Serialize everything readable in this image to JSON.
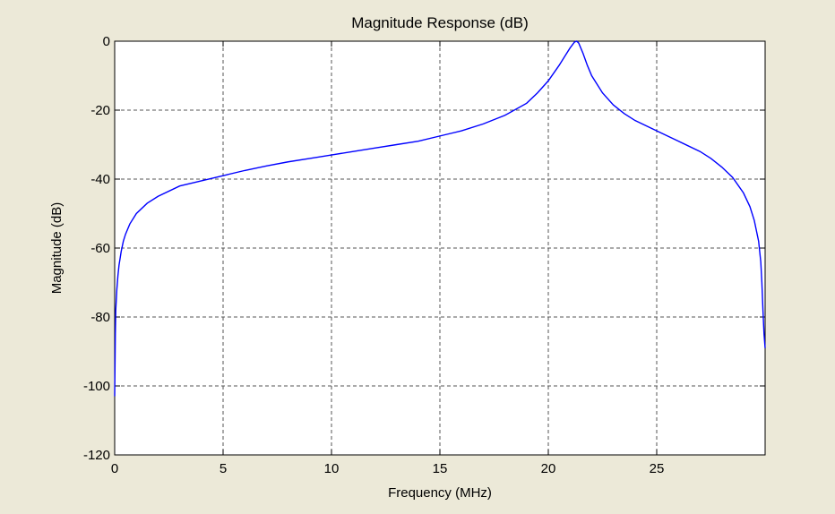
{
  "chart_data": {
    "type": "line",
    "title": "Magnitude Response (dB)",
    "xlabel": "Frequency (MHz)",
    "ylabel": "Magnitude (dB)",
    "xlim": [
      0,
      30
    ],
    "ylim": [
      -120,
      0
    ],
    "x_ticks": [
      0,
      5,
      10,
      15,
      20,
      25
    ],
    "x_tick_labels": [
      "0",
      "5",
      "10",
      "15",
      "20",
      "25"
    ],
    "y_ticks": [
      0,
      -20,
      -40,
      -60,
      -80,
      -100,
      -120
    ],
    "y_tick_labels": [
      "0",
      "-20",
      "-40",
      "-60",
      "-80",
      "-100",
      "-120"
    ],
    "grid": true,
    "colors": {
      "background": "#ece9d8",
      "plot_background": "#ffffff",
      "line": "#0000ff",
      "grid": "#555555"
    },
    "series": [
      {
        "x": [
          0.0,
          0.03,
          0.05,
          0.1,
          0.15,
          0.2,
          0.3,
          0.4,
          0.5,
          0.7,
          1.0,
          1.5,
          2.0,
          3.0,
          4.0,
          5.0,
          6.0,
          7.0,
          8.0,
          9.0,
          10.0,
          11.0,
          12.0,
          13.0,
          14.0,
          15.0,
          16.0,
          17.0,
          18.0,
          19.0,
          19.5,
          20.0,
          20.5,
          20.8,
          21.0,
          21.2,
          21.3,
          21.4,
          21.6,
          21.8,
          22.0,
          22.5,
          23.0,
          23.5,
          24.0,
          25.0,
          26.0,
          27.0,
          27.5,
          28.0,
          28.5,
          29.0,
          29.3,
          29.5,
          29.7,
          29.8,
          29.85,
          29.9,
          29.95,
          30.0
        ],
        "y": [
          -103,
          -85,
          -78,
          -72,
          -68,
          -65,
          -61,
          -58,
          -56,
          -53,
          -50,
          -47,
          -45,
          -42,
          -40.5,
          -39,
          -37.5,
          -36.2,
          -35,
          -34,
          -33,
          -32,
          -31,
          -30,
          -29,
          -27.5,
          -26,
          -24,
          -21.5,
          -18,
          -15,
          -11.5,
          -7,
          -4,
          -2,
          -0.3,
          0,
          -0.5,
          -3.5,
          -7,
          -10,
          -15,
          -18.5,
          -21,
          -23,
          -26,
          -29,
          -32,
          -34,
          -36.5,
          -39.5,
          -44,
          -48,
          -52,
          -58,
          -64,
          -70,
          -78,
          -85,
          -89
        ]
      }
    ]
  }
}
